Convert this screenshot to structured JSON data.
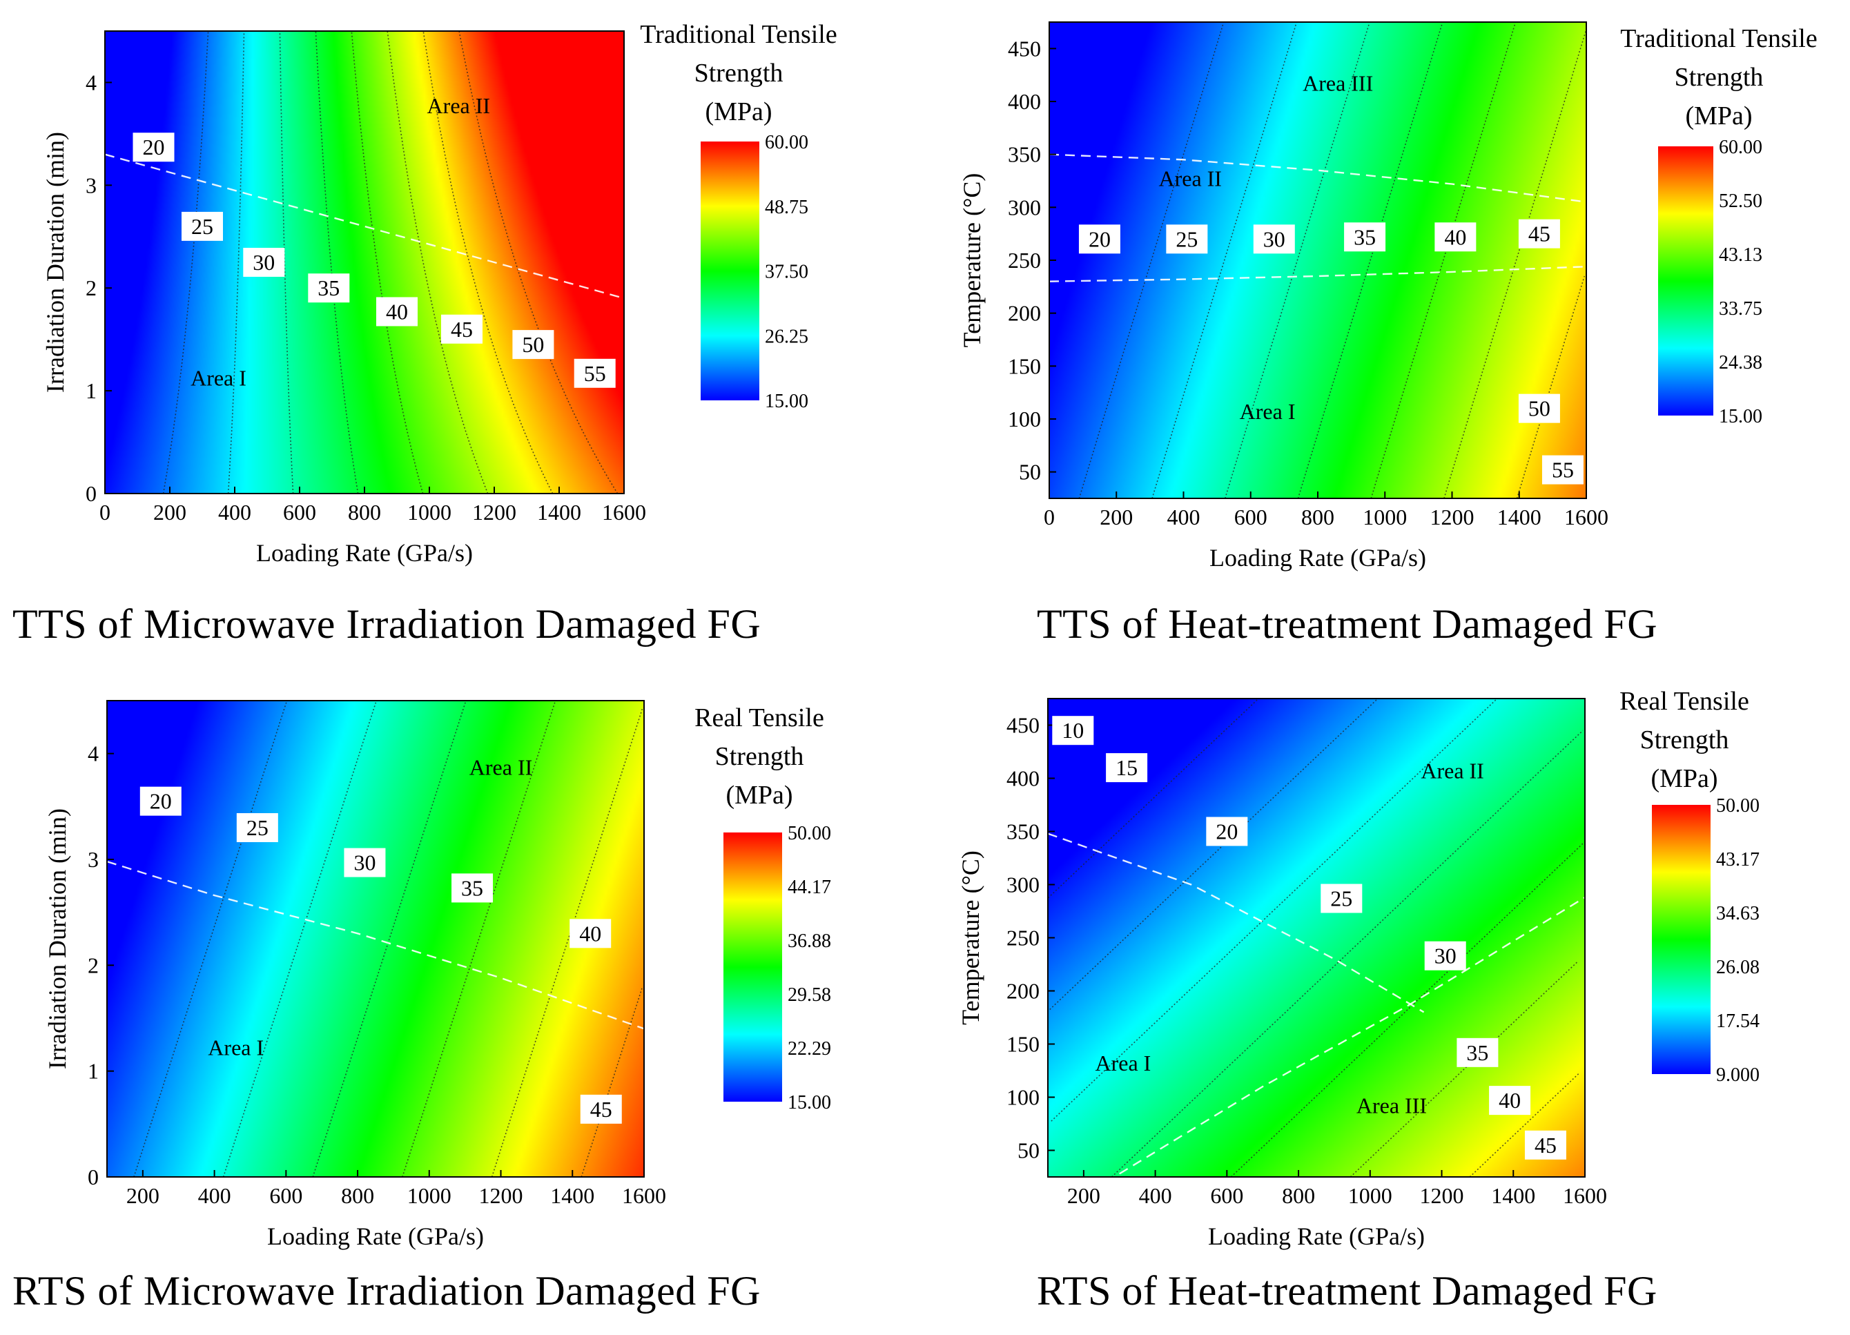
{
  "colors": {
    "scale": [
      "#0000ff",
      "#00ffff",
      "#00ff00",
      "#ffff00",
      "#ff0000"
    ],
    "contour_line": "#222222",
    "boundary_line": "#ffffff"
  },
  "chart_data": [
    {
      "type": "heatmap",
      "title": "TTS of Microwave Irradiation Damaged FG",
      "xlabel": "Loading Rate (GPa/s)",
      "ylabel": "Irradiation Duration (min)",
      "xlim": [
        0,
        1600
      ],
      "ylim": [
        0,
        4.5
      ],
      "xticks": [
        0,
        200,
        400,
        600,
        800,
        1000,
        1200,
        1400,
        1600
      ],
      "yticks": [
        0,
        1,
        2,
        3,
        4
      ],
      "colorbar": {
        "title": [
          "Traditional Tensile",
          "Strength",
          "(MPa)"
        ],
        "range": [
          15,
          60
        ],
        "ticks": [
          "60.00",
          "48.75",
          "37.50",
          "26.25",
          "15.00"
        ]
      },
      "model": {
        "base": 15.5,
        "ax": 0.025,
        "ay": -2.2,
        "bxy": 0.0045
      },
      "contour_levels": [
        20,
        25,
        30,
        35,
        40,
        45,
        50,
        55
      ],
      "contour_labels": [
        {
          "text": "20",
          "x": 150,
          "y": 3.37
        },
        {
          "text": "25",
          "x": 300,
          "y": 2.6
        },
        {
          "text": "30",
          "x": 490,
          "y": 2.25
        },
        {
          "text": "35",
          "x": 690,
          "y": 2.0
        },
        {
          "text": "40",
          "x": 900,
          "y": 1.77
        },
        {
          "text": "45",
          "x": 1100,
          "y": 1.6
        },
        {
          "text": "50",
          "x": 1320,
          "y": 1.45
        },
        {
          "text": "55",
          "x": 1510,
          "y": 1.17
        }
      ],
      "boundaries": [
        {
          "points": [
            [
              0,
              3.3
            ],
            [
              400,
              2.95
            ],
            [
              800,
              2.6
            ],
            [
              1200,
              2.25
            ],
            [
              1600,
              1.9
            ]
          ]
        }
      ],
      "areas": [
        {
          "text": "Area I",
          "x": 350,
          "y": 1.05
        },
        {
          "text": "Area II",
          "x": 1090,
          "y": 3.7
        }
      ]
    },
    {
      "type": "heatmap",
      "title": "TTS of Heat-treatment Damaged FG",
      "xlabel": "Loading Rate (GPa/s)",
      "ylabel": "Temperature (°C)",
      "xlim": [
        0,
        1600
      ],
      "ylim": [
        25,
        475
      ],
      "xticks": [
        0,
        200,
        400,
        600,
        800,
        1000,
        1200,
        1400,
        1600
      ],
      "yticks": [
        50,
        100,
        150,
        200,
        250,
        300,
        350,
        400,
        450
      ],
      "colorbar": {
        "title": [
          "Traditional Tensile",
          "Strength",
          "(MPa)"
        ],
        "range": [
          15,
          60
        ],
        "ticks": [
          "60.00",
          "52.50",
          "43.13",
          "33.75",
          "24.38",
          "15.00"
        ]
      },
      "model": {
        "base": 18.5,
        "ax": 0.023,
        "ay": -0.022,
        "bxy": 0.0
      },
      "contour_levels": [
        20,
        25,
        30,
        35,
        40,
        45,
        50,
        55
      ],
      "contour_labels": [
        {
          "text": "20",
          "x": 150,
          "y": 270
        },
        {
          "text": "25",
          "x": 410,
          "y": 270
        },
        {
          "text": "30",
          "x": 670,
          "y": 270
        },
        {
          "text": "35",
          "x": 940,
          "y": 272
        },
        {
          "text": "40",
          "x": 1210,
          "y": 272
        },
        {
          "text": "45",
          "x": 1460,
          "y": 275
        },
        {
          "text": "50",
          "x": 1460,
          "y": 110
        },
        {
          "text": "55",
          "x": 1530,
          "y": 52
        }
      ],
      "boundaries": [
        {
          "points": [
            [
              0,
              350
            ],
            [
              400,
              345
            ],
            [
              800,
              335
            ],
            [
              1200,
              322
            ],
            [
              1600,
              305
            ]
          ]
        },
        {
          "points": [
            [
              0,
              230
            ],
            [
              400,
              232
            ],
            [
              800,
              235
            ],
            [
              1200,
              239
            ],
            [
              1600,
              244
            ]
          ]
        }
      ],
      "areas": [
        {
          "text": "Area I",
          "x": 650,
          "y": 100
        },
        {
          "text": "Area II",
          "x": 420,
          "y": 320
        },
        {
          "text": "Area III",
          "x": 860,
          "y": 410
        }
      ]
    },
    {
      "type": "heatmap",
      "title": "RTS of Microwave Irradiation Damaged FG",
      "xlabel": "Loading Rate (GPa/s)",
      "ylabel": "Irradiation Duration (min)",
      "xlim": [
        100,
        1600
      ],
      "ylim": [
        0,
        4.5
      ],
      "xticks": [
        200,
        400,
        600,
        800,
        1000,
        1200,
        1400,
        1600
      ],
      "yticks": [
        0,
        1,
        2,
        3,
        4
      ],
      "colorbar": {
        "title": [
          "Real Tensile",
          "Strength",
          "(MPa)"
        ],
        "range": [
          15,
          50
        ],
        "ticks": [
          "50.00",
          "44.17",
          "36.88",
          "29.58",
          "22.29",
          "15.00"
        ]
      },
      "model": {
        "base": 16.5,
        "ax": 0.02,
        "ay": -1.9,
        "bxy": 0.0
      },
      "contour_levels": [
        20,
        25,
        30,
        35,
        40,
        45
      ],
      "contour_labels": [
        {
          "text": "20",
          "x": 250,
          "y": 3.55
        },
        {
          "text": "25",
          "x": 520,
          "y": 3.3
        },
        {
          "text": "30",
          "x": 820,
          "y": 2.97
        },
        {
          "text": "35",
          "x": 1120,
          "y": 2.73
        },
        {
          "text": "40",
          "x": 1450,
          "y": 2.3
        },
        {
          "text": "45",
          "x": 1480,
          "y": 0.64
        }
      ],
      "boundaries": [
        {
          "points": [
            [
              100,
              2.98
            ],
            [
              400,
              2.66
            ],
            [
              800,
              2.3
            ],
            [
              1200,
              1.88
            ],
            [
              1600,
              1.4
            ]
          ]
        }
      ],
      "areas": [
        {
          "text": "Area I",
          "x": 460,
          "y": 1.15
        },
        {
          "text": "Area II",
          "x": 1200,
          "y": 3.8
        }
      ]
    },
    {
      "type": "heatmap",
      "title": "RTS of Heat-treatment Damaged FG",
      "xlabel": "Loading Rate  (GPa/s)",
      "ylabel": "Temperature (°C)",
      "xlim": [
        100,
        1600
      ],
      "ylim": [
        25,
        475
      ],
      "xticks": [
        200,
        400,
        600,
        800,
        1000,
        1200,
        1400,
        1600
      ],
      "yticks": [
        50,
        100,
        150,
        200,
        250,
        300,
        350,
        400,
        450
      ],
      "colorbar": {
        "title": [
          "Real Tensile",
          "Strength",
          "(MPa)"
        ],
        "range": [
          9,
          50
        ],
        "ticks": [
          "50.00",
          "43.17",
          "34.63",
          "26.08",
          "17.54",
          "9.000"
        ]
      },
      "model": {
        "base": 22,
        "ax": 0.015,
        "ay": -0.047,
        "bxy": 0.0
      },
      "contour_levels": [
        10,
        15,
        20,
        25,
        30,
        35,
        40,
        45
      ],
      "contour_labels": [
        {
          "text": "10",
          "x": 170,
          "y": 445
        },
        {
          "text": "15",
          "x": 320,
          "y": 410
        },
        {
          "text": "20",
          "x": 600,
          "y": 350
        },
        {
          "text": "25",
          "x": 920,
          "y": 287
        },
        {
          "text": "30",
          "x": 1210,
          "y": 233
        },
        {
          "text": "35",
          "x": 1300,
          "y": 142
        },
        {
          "text": "40",
          "x": 1390,
          "y": 97
        },
        {
          "text": "45",
          "x": 1490,
          "y": 55
        }
      ],
      "boundaries": [
        {
          "points": [
            [
              100,
              348
            ],
            [
              500,
              300
            ],
            [
              900,
              230
            ],
            [
              1150,
              180
            ]
          ]
        },
        {
          "points": [
            [
              300,
              28
            ],
            [
              700,
              110
            ],
            [
              1100,
              185
            ],
            [
              1600,
              288
            ]
          ]
        }
      ],
      "areas": [
        {
          "text": "Area I",
          "x": 310,
          "y": 125
        },
        {
          "text": "Area II",
          "x": 1230,
          "y": 400
        },
        {
          "text": "Area III",
          "x": 1060,
          "y": 85
        }
      ]
    }
  ]
}
